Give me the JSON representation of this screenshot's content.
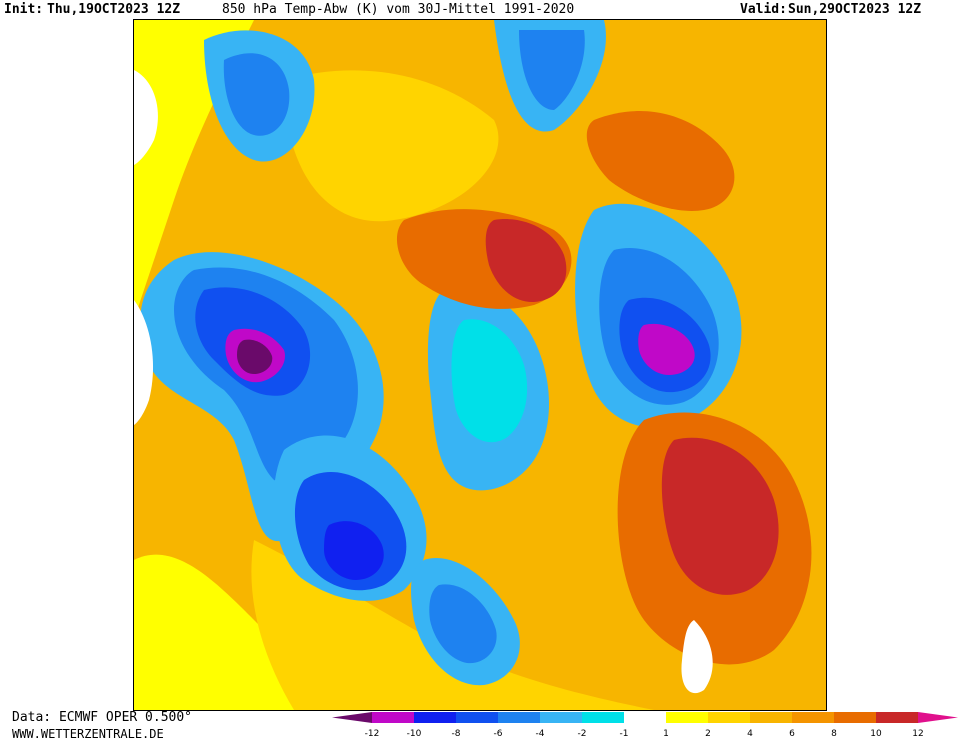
{
  "header": {
    "init_label": "Init:",
    "init_value": "Thu,19OCT2023 12Z",
    "title": "850 hPa Temp-Abw (K) vom 30J-Mittel 1991-2020",
    "valid_label": "Valid:",
    "valid_value": "Sun,29OCT2023 12Z"
  },
  "footer": {
    "data_source": "Data: ECMWF OPER 0.500°",
    "website": "WWW.WETTERZENTRALE.DE"
  },
  "legend": {
    "ticks": [
      "-12",
      "-10",
      "-8",
      "-6",
      "-4",
      "-2",
      "-1",
      "1",
      "2",
      "4",
      "6",
      "8",
      "10",
      "12"
    ],
    "colors": [
      "#6a0a6a",
      "#c008c8",
      "#1020f0",
      "#1050f0",
      "#1e82f0",
      "#38b4f4",
      "#00e0e8",
      "#ffffff",
      "#ffff00",
      "#ffd400",
      "#f8b400",
      "#f49400",
      "#e86c00",
      "#c82828",
      "#e0108c"
    ]
  },
  "map": {
    "colors": {
      "ocean_base": "#f7b500",
      "warm_light": "#ffd400",
      "warm_yellow": "#ffff00",
      "warm_orange": "#f49400",
      "warm_dark": "#e86c00",
      "warm_red": "#c82828",
      "neutral": "#ffffff",
      "cold_cyan": "#00e0e8",
      "cold_light": "#38b4f4",
      "cold_mid": "#1e82f0",
      "cold_blue": "#1050f0",
      "cold_deep": "#1020f0",
      "cold_magenta": "#c008c8"
    }
  }
}
